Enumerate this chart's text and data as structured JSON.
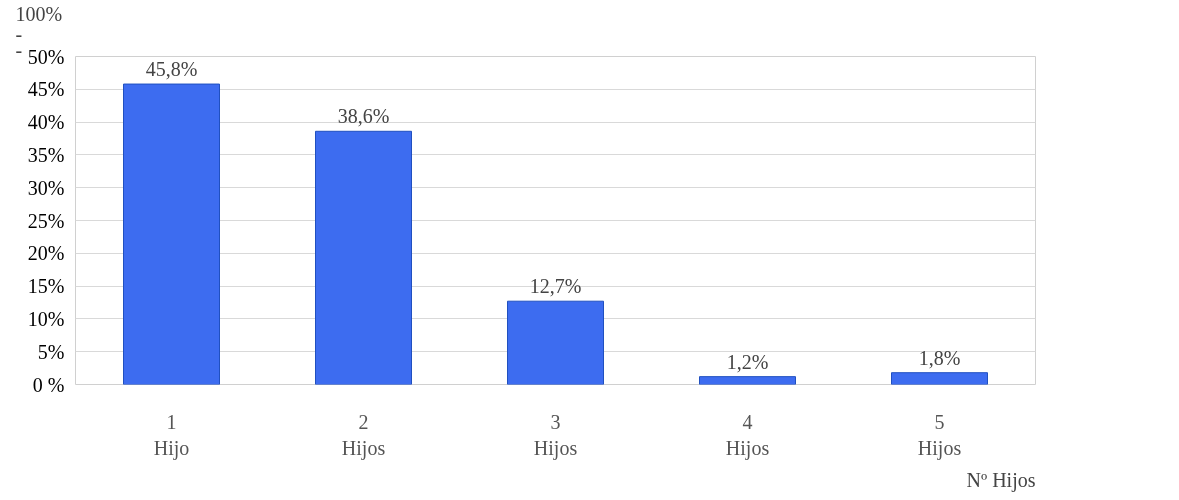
{
  "chart_data": {
    "type": "bar",
    "categories": [
      "1\nHijo",
      "2\nHijos",
      "3\nHijos",
      "4\nHijos",
      "5\nHijos"
    ],
    "values": [
      45.8,
      38.6,
      12.7,
      1.2,
      1.8
    ],
    "value_labels": [
      "45,8%",
      "38,6%",
      "12,7%",
      "1,2%",
      "1,8%"
    ],
    "color": "#3d6cf0",
    "xlabel": "Nº Hijos",
    "annotations": [
      "100%",
      "-",
      "-"
    ],
    "ylim": [
      0,
      50
    ],
    "yticks": [
      {
        "value": 0,
        "label": "0 %"
      },
      {
        "value": 5,
        "label": "5%"
      },
      {
        "value": 10,
        "label": "10%"
      },
      {
        "value": 15,
        "label": "15%"
      },
      {
        "value": 20,
        "label": "20%"
      },
      {
        "value": 25,
        "label": "25%"
      },
      {
        "value": 30,
        "label": "30%"
      },
      {
        "value": 35,
        "label": "35%"
      },
      {
        "value": 40,
        "label": "40%"
      },
      {
        "value": 45,
        "label": "45%"
      },
      {
        "value": 50,
        "label": "50%"
      }
    ],
    "grid": "y"
  }
}
